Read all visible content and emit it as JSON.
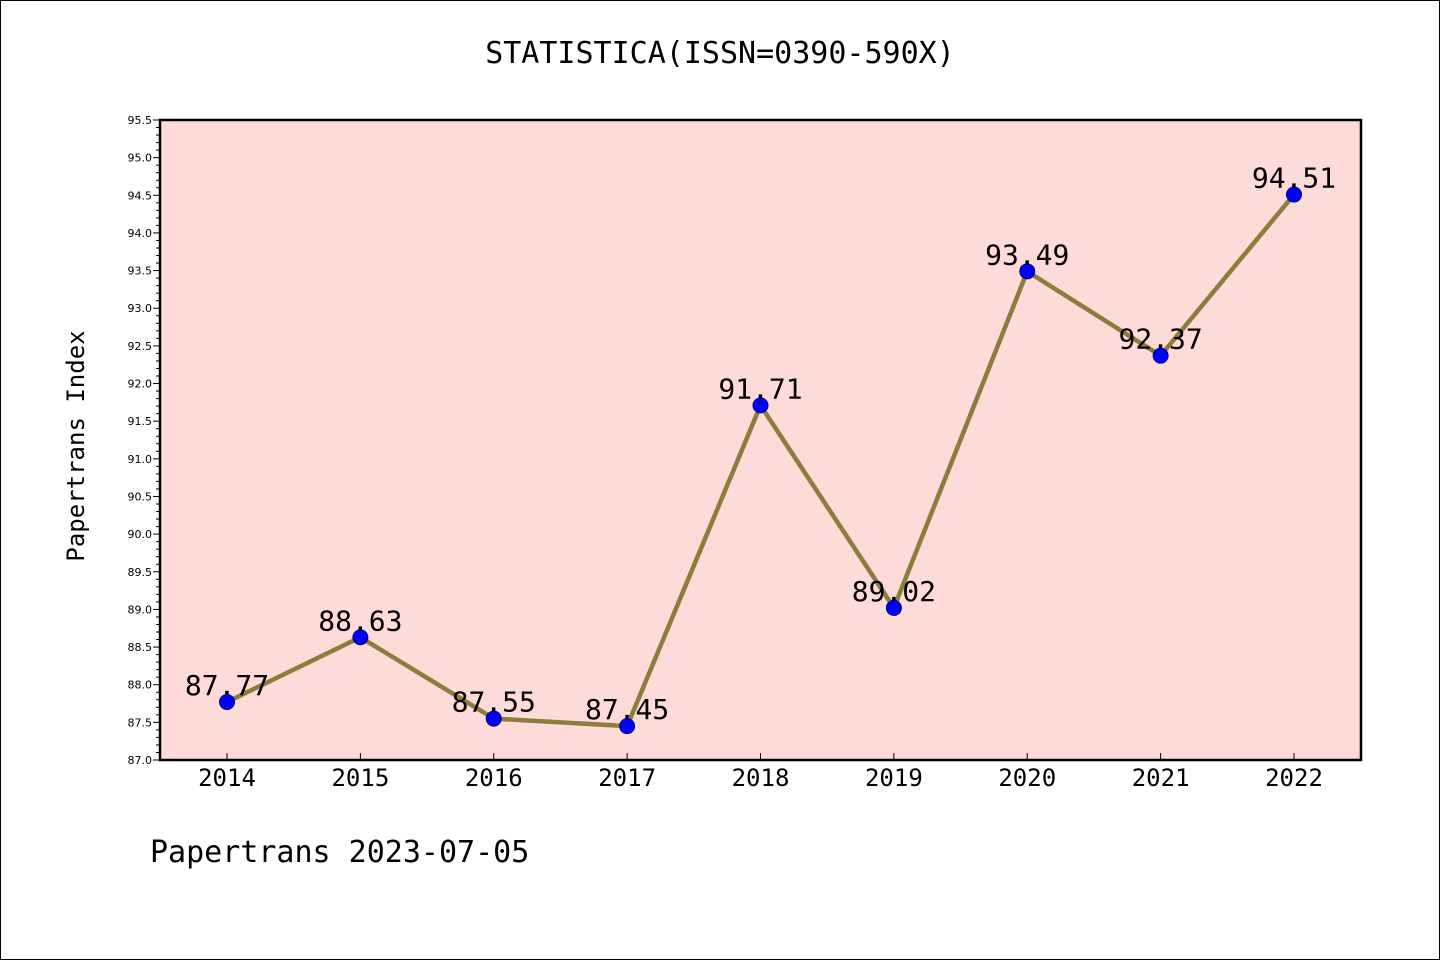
{
  "chart_data": {
    "type": "line",
    "title": "STATISTICA(ISSN=0390-590X)",
    "xlabel": "",
    "ylabel": "Papertrans Index",
    "x": [
      "2014",
      "2015",
      "2016",
      "2017",
      "2018",
      "2019",
      "2020",
      "2021",
      "2022"
    ],
    "series": [
      {
        "values": [
          87.77,
          88.63,
          87.55,
          87.45,
          91.71,
          89.02,
          93.49,
          92.37,
          94.51
        ]
      }
    ],
    "data_labels": [
      "87.77",
      "88.63",
      "87.55",
      "87.45",
      "91.71",
      "89.02",
      "93.49",
      "92.37",
      "94.51"
    ],
    "ylim": [
      87.0,
      95.5
    ],
    "yticks": [
      "87.0",
      "87.5",
      "88.0",
      "88.5",
      "89.0",
      "89.5",
      "90.0",
      "90.5",
      "91.0",
      "91.5",
      "92.0",
      "92.5",
      "93.0",
      "93.5",
      "94.0",
      "94.5",
      "95.0",
      "95.5"
    ],
    "grid": false,
    "colors": {
      "plot_background": "#fddbd9",
      "line": "#8b7d3a",
      "marker": "#0000ff",
      "marker_edge": "#00008b"
    }
  },
  "footer": {
    "text": "Papertrans 2023-07-05"
  }
}
